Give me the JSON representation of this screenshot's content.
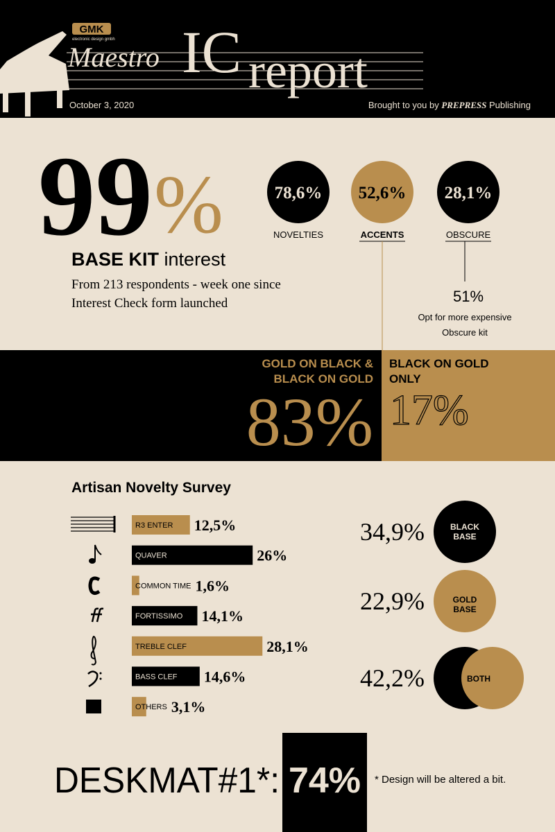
{
  "header": {
    "logo": "GMK",
    "logo_sub": "electronic design gmbh",
    "title_1": "Maestro",
    "title_2": "IC",
    "title_3": "report",
    "date": "October 3, 2020",
    "credit_prefix": "Brought to you by",
    "credit_brand": "PREPRESS",
    "credit_suffix": "Publishing"
  },
  "headline": {
    "number": "99",
    "unit": "%",
    "label_bold": "BASE KIT",
    "label_light": "interest",
    "description": [
      "From 213 respondents - week one since",
      "Interest Check form launched"
    ]
  },
  "circles": [
    {
      "value": "78,6%",
      "label": "NOVELTIES"
    },
    {
      "value": "52,6%",
      "label": "ACCENTS"
    },
    {
      "value": "28,1%",
      "label": "OBSCURE"
    }
  ],
  "obscure_note": {
    "value": "51%",
    "text": [
      "Opt for more expensive",
      "Obscure kit"
    ]
  },
  "colorway": {
    "left": {
      "label": [
        "GOLD ON BLACK &",
        "BLACK ON GOLD"
      ],
      "value": "83%"
    },
    "right": {
      "label": [
        "BLACK ON GOLD",
        "ONLY"
      ],
      "value": "17%"
    }
  },
  "survey": {
    "title": "Artisan Novelty Survey",
    "items": [
      {
        "name": "R3 ENTER",
        "value": 12.5,
        "label": "12,5%",
        "color": "#b98e4e"
      },
      {
        "name": "QUAVER",
        "value": 26,
        "label": "26%",
        "color": "#000000"
      },
      {
        "name": "COMMON TIME",
        "value": 1.6,
        "label": "1,6%",
        "color": "#b98e4e"
      },
      {
        "name": "FORTISSIMO",
        "value": 14.1,
        "label": "14,1%",
        "color": "#000000"
      },
      {
        "name": "TREBLE CLEF",
        "value": 28.1,
        "label": "28,1%",
        "color": "#b98e4e"
      },
      {
        "name": "BASS CLEF",
        "value": 14.6,
        "label": "14,6%",
        "color": "#000000"
      },
      {
        "name": "OTHERS",
        "value": 3.1,
        "label": "3,1%",
        "color": "#b98e4e"
      }
    ]
  },
  "base": [
    {
      "value": "34,9%",
      "label": [
        "BLACK",
        "BASE"
      ]
    },
    {
      "value": "22,9%",
      "label": [
        "GOLD",
        "BASE"
      ]
    },
    {
      "value": "42,2%",
      "label": [
        "BOTH"
      ]
    }
  ],
  "deskmat": {
    "label": "DESKMAT#1*:",
    "value": "74%",
    "note": "* Design will be altered a bit."
  }
}
